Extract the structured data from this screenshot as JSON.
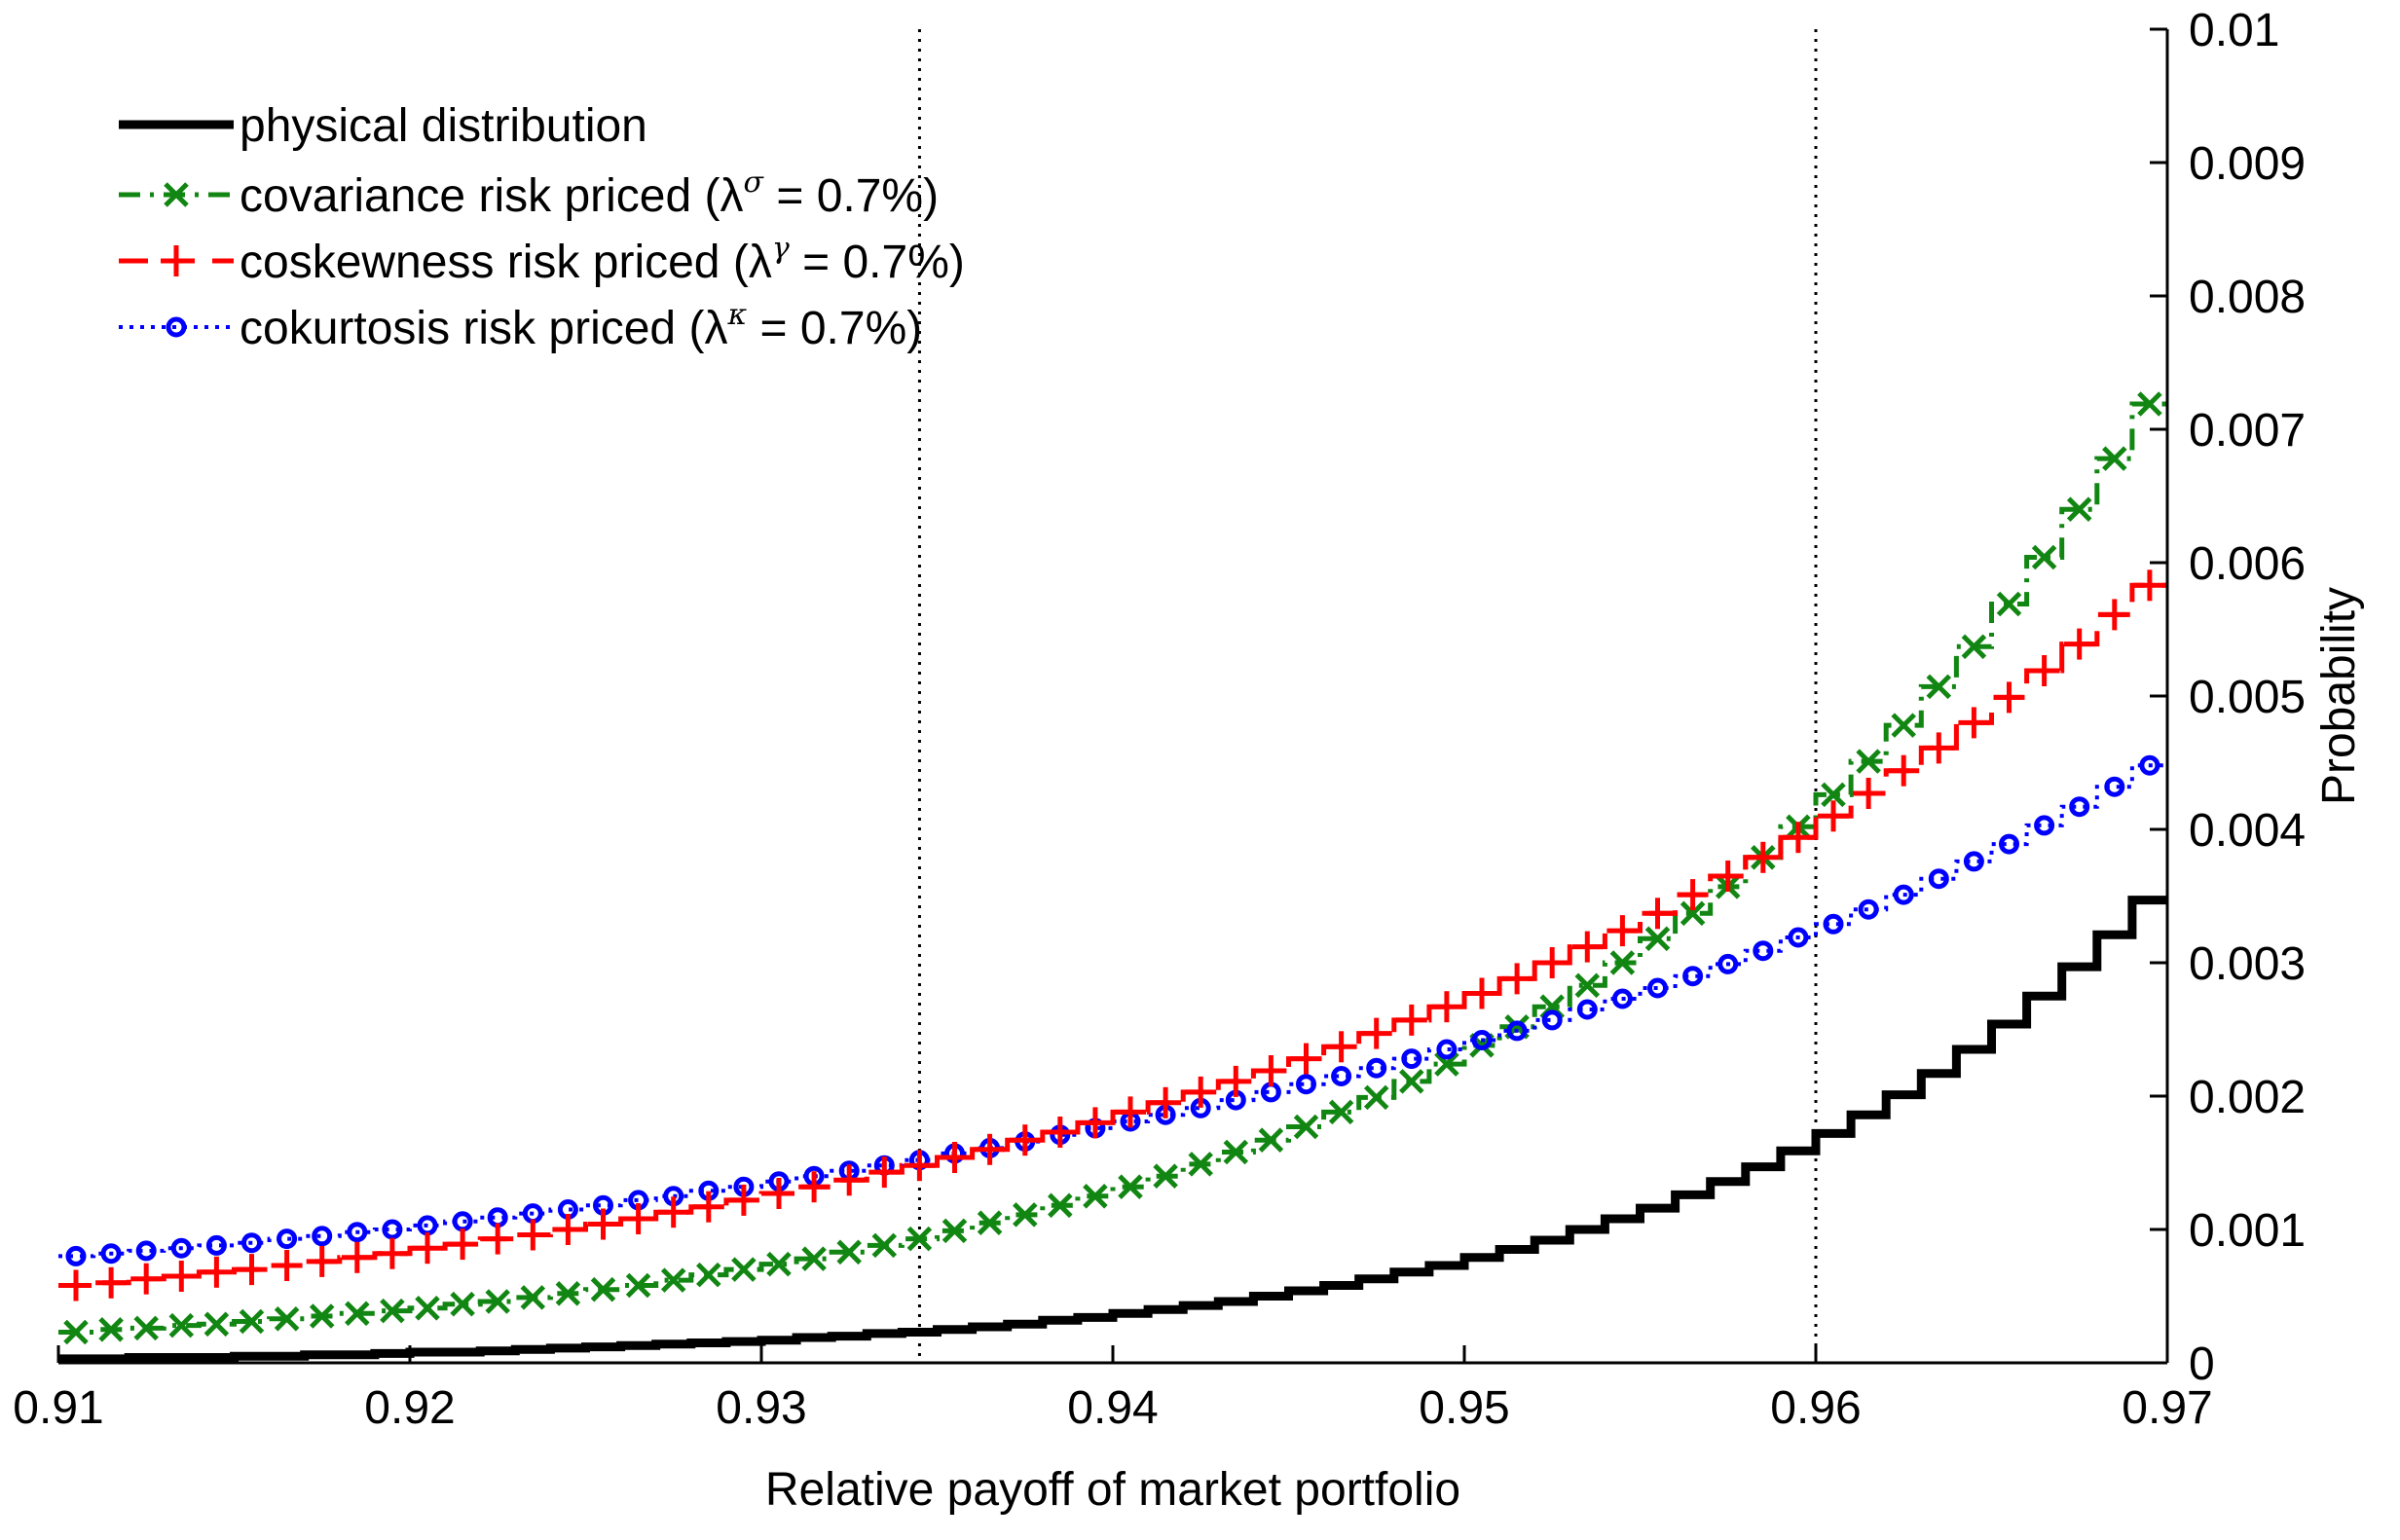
{
  "chart_data": {
    "type": "line",
    "title": "",
    "xlabel": "Relative payoff of market portfolio",
    "ylabel": "Probability",
    "xlim": [
      0.91,
      0.97
    ],
    "ylim": [
      0,
      0.01
    ],
    "x_ticks": [
      "0.91",
      "0.92",
      "0.93",
      "0.94",
      "0.95",
      "0.96",
      "0.97"
    ],
    "y_ticks": [
      "0",
      "0.001",
      "0.002",
      "0.003",
      "0.004",
      "0.005",
      "0.006",
      "0.007",
      "0.008",
      "0.009",
      "0.01"
    ],
    "y_axis_side": "right",
    "grid": false,
    "legend_position": "top-left",
    "vertical_reference_lines": [
      0.9345,
      0.96
    ],
    "step": 0.001,
    "series": [
      {
        "name": "physical distribution",
        "style": "solid step",
        "color": "#000000",
        "marker": "none",
        "x": [
          0.91,
          0.911,
          0.912,
          0.913,
          0.914,
          0.915,
          0.916,
          0.917,
          0.918,
          0.919,
          0.92,
          0.921,
          0.922,
          0.923,
          0.924,
          0.925,
          0.926,
          0.927,
          0.928,
          0.929,
          0.93,
          0.931,
          0.932,
          0.933,
          0.934,
          0.935,
          0.936,
          0.937,
          0.938,
          0.939,
          0.94,
          0.941,
          0.942,
          0.943,
          0.944,
          0.945,
          0.946,
          0.947,
          0.948,
          0.949,
          0.95,
          0.951,
          0.952,
          0.953,
          0.954,
          0.955,
          0.956,
          0.957,
          0.958,
          0.959,
          0.96,
          0.961,
          0.962,
          0.963,
          0.964,
          0.965,
          0.966,
          0.967,
          0.968,
          0.969
        ],
        "y": [
          3e-05,
          3e-05,
          4e-05,
          4e-05,
          4e-05,
          5e-05,
          5e-05,
          6e-05,
          6e-05,
          7e-05,
          8e-05,
          8e-05,
          9e-05,
          0.0001,
          0.00011,
          0.00012,
          0.00013,
          0.00014,
          0.00015,
          0.00016,
          0.00017,
          0.00019,
          0.0002,
          0.00022,
          0.00023,
          0.00025,
          0.00027,
          0.00029,
          0.00032,
          0.00034,
          0.00037,
          0.0004,
          0.00043,
          0.00046,
          0.0005,
          0.00054,
          0.00058,
          0.00063,
          0.00068,
          0.00073,
          0.00079,
          0.00085,
          0.00092,
          0.001,
          0.00108,
          0.00116,
          0.00126,
          0.00136,
          0.00147,
          0.00159,
          0.00172,
          0.00186,
          0.00201,
          0.00217,
          0.00235,
          0.00254,
          0.00275,
          0.00297,
          0.00321,
          0.00347
        ]
      },
      {
        "name": "covariance risk priced (λ^σ = 0.7%)",
        "style": "dash-dot step",
        "color": "#128612",
        "marker": "x",
        "x": [
          0.91,
          0.911,
          0.912,
          0.913,
          0.914,
          0.915,
          0.916,
          0.917,
          0.918,
          0.919,
          0.92,
          0.921,
          0.922,
          0.923,
          0.924,
          0.925,
          0.926,
          0.927,
          0.928,
          0.929,
          0.93,
          0.931,
          0.932,
          0.933,
          0.934,
          0.935,
          0.936,
          0.937,
          0.938,
          0.939,
          0.94,
          0.941,
          0.942,
          0.943,
          0.944,
          0.945,
          0.946,
          0.947,
          0.948,
          0.949,
          0.95,
          0.951,
          0.952,
          0.953,
          0.954,
          0.955,
          0.956,
          0.957,
          0.958,
          0.959,
          0.96,
          0.961,
          0.962,
          0.963,
          0.964,
          0.965,
          0.966,
          0.967,
          0.968,
          0.969
        ],
        "y": [
          0.00023,
          0.00025,
          0.00026,
          0.00028,
          0.00029,
          0.00031,
          0.00033,
          0.00035,
          0.00037,
          0.00039,
          0.00041,
          0.00044,
          0.00046,
          0.00049,
          0.00052,
          0.00055,
          0.00058,
          0.00062,
          0.00066,
          0.0007,
          0.00074,
          0.00078,
          0.00083,
          0.00088,
          0.00093,
          0.00099,
          0.00105,
          0.00111,
          0.00118,
          0.00125,
          0.00132,
          0.0014,
          0.00149,
          0.00158,
          0.00167,
          0.00177,
          0.00188,
          0.00199,
          0.00211,
          0.00224,
          0.00238,
          0.00252,
          0.00267,
          0.00283,
          0.003,
          0.00318,
          0.00337,
          0.00357,
          0.00379,
          0.00402,
          0.00426,
          0.00451,
          0.00478,
          0.00507,
          0.00537,
          0.00569,
          0.00604,
          0.0064,
          0.00678,
          0.00719
        ]
      },
      {
        "name": "coskewness risk priced (λ^γ = 0.7%)",
        "style": "dashed step",
        "color": "#ff0000",
        "marker": "+",
        "x": [
          0.91,
          0.911,
          0.912,
          0.913,
          0.914,
          0.915,
          0.916,
          0.917,
          0.918,
          0.919,
          0.92,
          0.921,
          0.922,
          0.923,
          0.924,
          0.925,
          0.926,
          0.927,
          0.928,
          0.929,
          0.93,
          0.931,
          0.932,
          0.933,
          0.934,
          0.935,
          0.936,
          0.937,
          0.938,
          0.939,
          0.94,
          0.941,
          0.942,
          0.943,
          0.944,
          0.945,
          0.946,
          0.947,
          0.948,
          0.949,
          0.95,
          0.951,
          0.952,
          0.953,
          0.954,
          0.955,
          0.956,
          0.957,
          0.958,
          0.959,
          0.96,
          0.961,
          0.962,
          0.963,
          0.964,
          0.965,
          0.966,
          0.967,
          0.968,
          0.969
        ],
        "y": [
          0.00058,
          0.0006,
          0.00063,
          0.00065,
          0.00068,
          0.0007,
          0.00073,
          0.00076,
          0.00079,
          0.00082,
          0.00086,
          0.00089,
          0.00093,
          0.00096,
          0.001,
          0.00104,
          0.00108,
          0.00113,
          0.00117,
          0.00122,
          0.00127,
          0.00132,
          0.00137,
          0.00143,
          0.00148,
          0.00154,
          0.0016,
          0.00167,
          0.00173,
          0.0018,
          0.00188,
          0.00195,
          0.00203,
          0.00211,
          0.00219,
          0.00228,
          0.00237,
          0.00247,
          0.00257,
          0.00267,
          0.00277,
          0.00288,
          0.003,
          0.00312,
          0.00324,
          0.00337,
          0.00351,
          0.00365,
          0.00379,
          0.00394,
          0.0041,
          0.00427,
          0.00444,
          0.00461,
          0.0048,
          0.00499,
          0.00519,
          0.00539,
          0.00561,
          0.00583
        ]
      },
      {
        "name": "cokurtosis risk priced (λ^κ = 0.7%)",
        "style": "dotted step",
        "color": "#0000ff",
        "marker": "o",
        "x": [
          0.91,
          0.911,
          0.912,
          0.913,
          0.914,
          0.915,
          0.916,
          0.917,
          0.918,
          0.919,
          0.92,
          0.921,
          0.922,
          0.923,
          0.924,
          0.925,
          0.926,
          0.927,
          0.928,
          0.929,
          0.93,
          0.931,
          0.932,
          0.933,
          0.934,
          0.935,
          0.936,
          0.937,
          0.938,
          0.939,
          0.94,
          0.941,
          0.942,
          0.943,
          0.944,
          0.945,
          0.946,
          0.947,
          0.948,
          0.949,
          0.95,
          0.951,
          0.952,
          0.953,
          0.954,
          0.955,
          0.956,
          0.957,
          0.958,
          0.959,
          0.96,
          0.961,
          0.962,
          0.963,
          0.964,
          0.965,
          0.966,
          0.967,
          0.968,
          0.969
        ],
        "y": [
          0.0008,
          0.00082,
          0.00084,
          0.00086,
          0.00088,
          0.0009,
          0.00093,
          0.00095,
          0.00098,
          0.001,
          0.00103,
          0.00106,
          0.00109,
          0.00112,
          0.00115,
          0.00118,
          0.00122,
          0.00125,
          0.00129,
          0.00132,
          0.00136,
          0.0014,
          0.00144,
          0.00148,
          0.00152,
          0.00157,
          0.00161,
          0.00166,
          0.00171,
          0.00176,
          0.00181,
          0.00186,
          0.00191,
          0.00197,
          0.00203,
          0.00209,
          0.00215,
          0.00221,
          0.00228,
          0.00235,
          0.00242,
          0.00249,
          0.00257,
          0.00265,
          0.00273,
          0.00281,
          0.0029,
          0.00299,
          0.00309,
          0.00319,
          0.00329,
          0.0034,
          0.00351,
          0.00363,
          0.00376,
          0.00389,
          0.00403,
          0.00417,
          0.00432,
          0.00448
        ]
      }
    ]
  },
  "legend": [
    {
      "label": "covariance risk priced (λ",
      "sup": "σ",
      "tail": " = 0.7%)"
    },
    {
      "label": "coskewness risk priced (λ",
      "sup": "γ",
      "tail": " = 0.7%)"
    },
    {
      "label": "cokurtosis risk priced (λ",
      "sup": "κ",
      "tail": " = 0.7%)"
    }
  ]
}
